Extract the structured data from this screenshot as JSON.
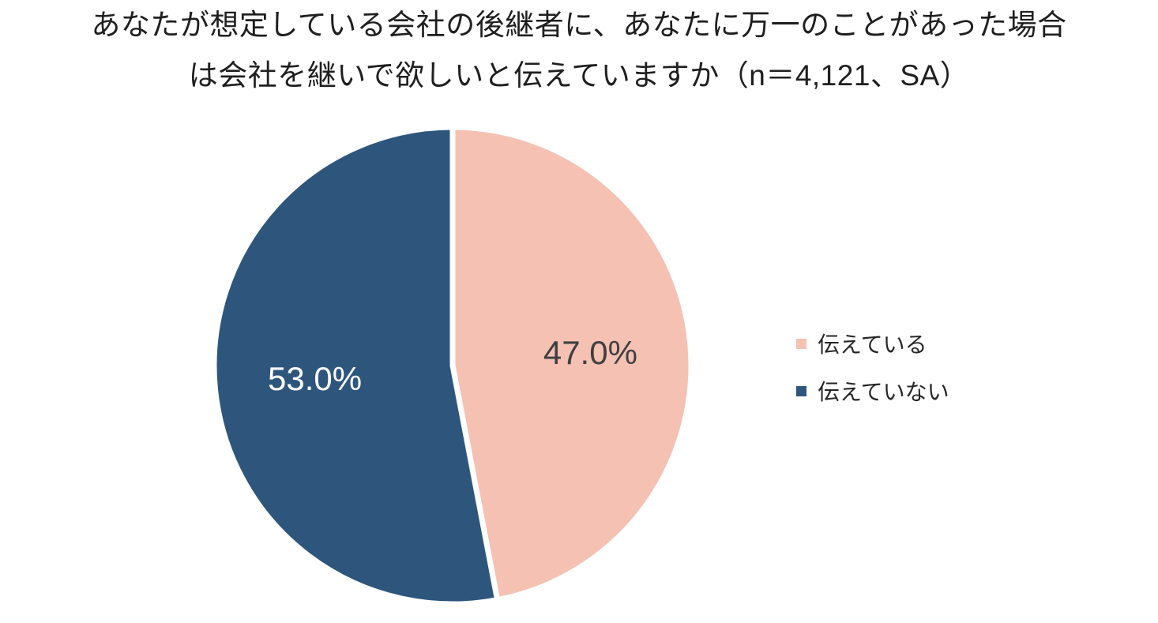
{
  "title": {
    "line1": "あなたが想定している会社の後継者に、あなたに万一のことがあった場合",
    "line2": "は会社を継いで欲しいと伝えていますか（n＝4,121、SA）"
  },
  "chart_data": {
    "type": "pie",
    "title": "あなたが想定している会社の後継者に、あなたに万一のことがあった場合は会社を継いで欲しいと伝えていますか（n＝4,121、SA）",
    "sample_size_label": "n＝4,121",
    "question_type": "SA",
    "categories": [
      "伝えている",
      "伝えていない"
    ],
    "values": [
      47.0,
      53.0
    ],
    "data_labels": [
      "47.0%",
      "53.0%"
    ],
    "colors": [
      "#F5C1B3",
      "#2E567D"
    ],
    "data_label_colors": [
      "#404040",
      "#FFFFFF"
    ],
    "start_angle_deg": 0,
    "direction": "clockwise",
    "slice_border_color": "#FFFFFF",
    "legend_position": "right",
    "background_color": "#FFFFFF"
  },
  "legend": {
    "items": [
      {
        "label": "伝えている",
        "color": "#F5C1B3"
      },
      {
        "label": "伝えていない",
        "color": "#2E567D"
      }
    ]
  }
}
